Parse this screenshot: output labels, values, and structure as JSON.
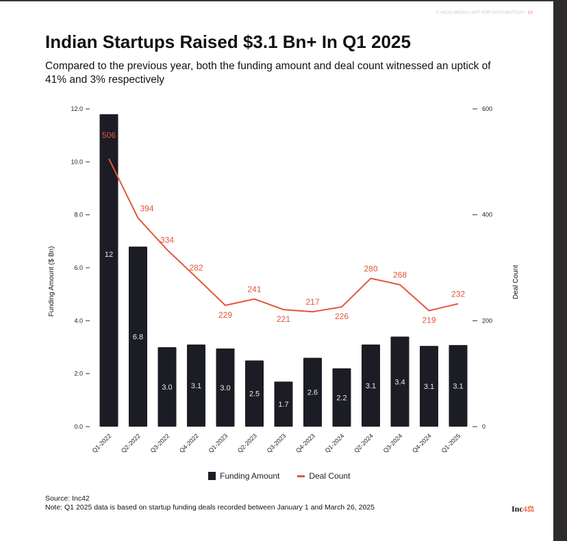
{
  "header": {
    "copyright": "© INC42 MEDIA | NOT FOR DISTRIBUTION /",
    "page_number": "10"
  },
  "title": "Indian Startups Raised $3.1 Bn+ In Q1 2025",
  "subtitle": "Compared to the previous year, both the funding amount and deal count witnessed an uptick of 41% and 3% respectively",
  "chart_data": {
    "type": "bar+line",
    "categories": [
      "Q1-2022",
      "Q2-2022",
      "Q3-2022",
      "Q4-2022",
      "Q1-2023",
      "Q2-2023",
      "Q3-2023",
      "Q4-2023",
      "Q1-2024",
      "Q2-2024",
      "Q3-2024",
      "Q4-2024",
      "Q1-2025"
    ],
    "series": [
      {
        "name": "Funding Amount",
        "type": "bar",
        "axis": "left",
        "color": "#1c1d24",
        "values": [
          11.8,
          6.8,
          3.0,
          3.1,
          2.95,
          2.5,
          1.7,
          2.6,
          2.2,
          3.1,
          3.4,
          3.05,
          3.08
        ],
        "labels": [
          "12",
          "6.8",
          "3.0",
          "3.1",
          "3.0",
          "2.5",
          "1.7",
          "2.6",
          "2.2",
          "3.1",
          "3.4",
          "3.1",
          "3.1"
        ]
      },
      {
        "name": "Deal Count",
        "type": "line",
        "axis": "right",
        "color": "#e2563a",
        "values": [
          506,
          394,
          334,
          282,
          229,
          241,
          221,
          217,
          226,
          280,
          268,
          219,
          232
        ]
      }
    ],
    "ylabel": "Funding Amount ($ Bn)",
    "y2label": "Deal Count",
    "ylim": [
      0,
      12
    ],
    "y_ticks": [
      "0.0",
      "2.0",
      "4.0",
      "6.0",
      "8.0",
      "10.0",
      "12.0"
    ],
    "y2lim": [
      0,
      600
    ],
    "y2_ticks": [
      "0",
      "200",
      "400",
      "600"
    ],
    "grid": false,
    "legend": "bottom-center"
  },
  "footer": {
    "source": "Source: Inc42",
    "note": "Note: Q1 2025 data is based on startup funding deals recorded between January 1 and March 26, 2025",
    "logo": "Inc42"
  }
}
